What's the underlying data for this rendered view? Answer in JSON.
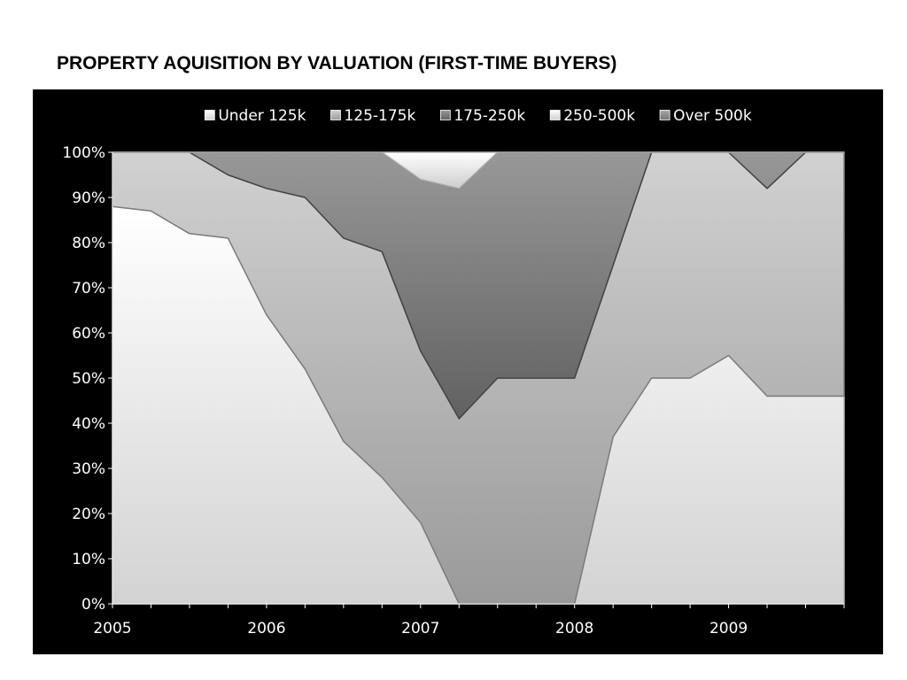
{
  "title": "PROPERTY AQUISITION BY VALUATION (FIRST-TIME BUYERS)",
  "chart_data": {
    "type": "area",
    "stacked": "percent",
    "title": "PROPERTY AQUISITION BY VALUATION (FIRST-TIME BUYERS)",
    "xlabel": "",
    "ylabel": "",
    "x": [
      2005.0,
      2005.25,
      2005.5,
      2005.75,
      2006.0,
      2006.25,
      2006.5,
      2006.75,
      2007.0,
      2007.25,
      2007.5,
      2007.75,
      2008.0,
      2008.25,
      2008.5,
      2008.75,
      2009.0,
      2009.25,
      2009.5,
      2009.75
    ],
    "x_tick_labels": [
      {
        "value": 2005,
        "label": "2005"
      },
      {
        "value": 2006,
        "label": "2006"
      },
      {
        "value": 2007,
        "label": "2007"
      },
      {
        "value": 2008,
        "label": "2008"
      },
      {
        "value": 2009,
        "label": "2009"
      }
    ],
    "y_tick_labels": [
      "0%",
      "10%",
      "20%",
      "30%",
      "40%",
      "50%",
      "60%",
      "70%",
      "80%",
      "90%",
      "100%"
    ],
    "ylim": [
      0,
      100
    ],
    "grid": false,
    "legend_position": "top",
    "series": [
      {
        "name": "Under 125k",
        "color": "#ececec",
        "values": [
          88,
          87,
          82,
          81,
          64,
          52,
          36,
          28,
          18,
          0,
          0,
          0,
          0,
          37,
          50,
          50,
          55,
          46,
          46,
          46
        ]
      },
      {
        "name": "125-175k",
        "color": "#b3b3b3",
        "values": [
          12,
          13,
          18,
          14,
          28,
          38,
          45,
          50,
          38,
          41,
          50,
          50,
          50,
          38,
          50,
          50,
          45,
          46,
          54,
          54
        ]
      },
      {
        "name": "175-250k",
        "color": "#7a7a7a",
        "values": [
          0,
          0,
          0,
          5,
          8,
          10,
          19,
          22,
          38,
          51,
          50,
          50,
          50,
          25,
          0,
          0,
          0,
          8,
          0,
          0
        ]
      },
      {
        "name": "250-500k",
        "color": "#e6e6e6",
        "values": [
          0,
          0,
          0,
          0,
          0,
          0,
          0,
          0,
          6,
          8,
          0,
          0,
          0,
          0,
          0,
          0,
          0,
          0,
          0,
          0
        ]
      },
      {
        "name": "Over 500k",
        "color": "#8c8c8c",
        "values": [
          0,
          0,
          0,
          0,
          0,
          0,
          0,
          0,
          0,
          0,
          0,
          0,
          0,
          0,
          0,
          0,
          0,
          0,
          0,
          0
        ]
      }
    ]
  }
}
